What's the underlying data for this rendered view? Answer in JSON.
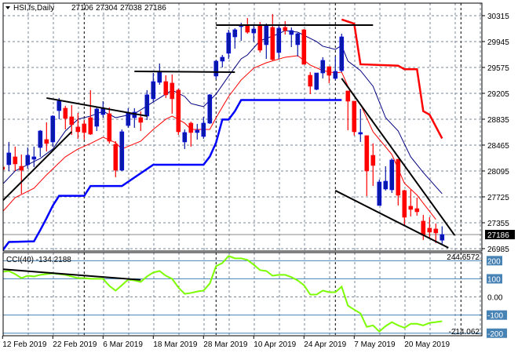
{
  "header": {
    "symbol": "HSI,fs,Daily",
    "open": "27106",
    "high": "27304",
    "low": "27038",
    "close": "27186"
  },
  "colors": {
    "bull": "#0a1aa8",
    "bear": "#ff0000",
    "ma_blue": "#000080",
    "ma_red": "#ff0000",
    "channel_low": "#0000ff",
    "channel_high": "#ff0000",
    "cci": "#7cfc00",
    "trendline": "#000000",
    "grid": "#7a8796",
    "cci_level": "#4682b4"
  },
  "chart_data": [
    {
      "type": "candlestick",
      "title": "",
      "ylim": [
        26951,
        30494
      ],
      "grid": true,
      "y_ticks": [
        "30315",
        "29945",
        "29575",
        "29205",
        "28835",
        "28465",
        "28095",
        "27725",
        "27355",
        "26985"
      ],
      "last_price_label": "27186",
      "x_labels": [
        "12 Feb 2019",
        "22 Feb 2019",
        "6 Mar 2019",
        "18 Mar 2019",
        "28 Mar 2019",
        "10 Apr 2019",
        "24 Apr 2019",
        "7 May 2019",
        "20 May 2019"
      ],
      "candles": [
        [
          "2019-02-12",
          28151,
          28218,
          27848,
          28117
        ],
        [
          "2019-02-13",
          28185,
          28510,
          28095,
          28353
        ],
        [
          "2019-02-14",
          28297,
          28443,
          28095,
          28196
        ],
        [
          "2019-02-15",
          28162,
          28331,
          27770,
          28106
        ],
        [
          "2019-02-18",
          28185,
          28431,
          28129,
          28319
        ],
        [
          "2019-02-19",
          28263,
          28443,
          28151,
          28297
        ],
        [
          "2019-02-20",
          28431,
          28680,
          28297,
          28667
        ],
        [
          "2019-02-21",
          28544,
          28790,
          28375,
          28488
        ],
        [
          "2019-02-22",
          28510,
          28891,
          28443,
          28880
        ],
        [
          "2019-02-25",
          28958,
          29138,
          28835,
          29093
        ],
        [
          "2019-02-26",
          28992,
          29026,
          28689,
          28846
        ],
        [
          "2019-02-27",
          28869,
          29037,
          28611,
          28757
        ],
        [
          "2019-02-28",
          28723,
          28925,
          28555,
          28656
        ],
        [
          "2019-03-01",
          28768,
          28824,
          28544,
          28645
        ],
        [
          "2019-03-04",
          28857,
          29250,
          28611,
          28622
        ],
        [
          "2019-03-05",
          28734,
          29003,
          28667,
          28981
        ],
        [
          "2019-03-06",
          28902,
          29093,
          28857,
          28992
        ],
        [
          "2019-03-07",
          28913,
          29003,
          28488,
          28521
        ],
        [
          "2019-03-08",
          28476,
          28521,
          28006,
          28106
        ],
        [
          "2019-03-11",
          28106,
          28689,
          28095,
          28656
        ],
        [
          "2019-03-12",
          28745,
          28992,
          28712,
          28925
        ],
        [
          "2019-03-13",
          28857,
          28992,
          28712,
          28936
        ],
        [
          "2019-03-14",
          28857,
          28947,
          28667,
          28790
        ],
        [
          "2019-03-15",
          28880,
          29250,
          28824,
          29183
        ],
        [
          "2019-03-18",
          29127,
          29496,
          29082,
          29373
        ],
        [
          "2019-03-19",
          29362,
          29631,
          29328,
          29519
        ],
        [
          "2019-03-20",
          29373,
          29463,
          29138,
          29183
        ],
        [
          "2019-03-21",
          29351,
          29474,
          28913,
          29127
        ],
        [
          "2019-03-22",
          29250,
          29272,
          28611,
          28656
        ],
        [
          "2019-03-25",
          28510,
          28689,
          28409,
          28645
        ],
        [
          "2019-03-26",
          28779,
          28801,
          28443,
          28645
        ],
        [
          "2019-03-27",
          28645,
          28768,
          28544,
          28678
        ],
        [
          "2019-03-28",
          28589,
          28869,
          28555,
          28779
        ],
        [
          "2019-03-29",
          28779,
          29194,
          28768,
          29183
        ],
        [
          "2019-04-01",
          29452,
          29676,
          29407,
          29665
        ],
        [
          "2019-04-02",
          29665,
          29754,
          29575,
          29721
        ],
        [
          "2019-04-03",
          29777,
          30113,
          29698,
          30068
        ],
        [
          "2019-04-04",
          30012,
          30135,
          29844,
          30113
        ],
        [
          "2019-04-08",
          30158,
          30214,
          29956,
          30180
        ],
        [
          "2019-04-09",
          30169,
          30281,
          30057,
          30079
        ],
        [
          "2019-04-10",
          30068,
          30180,
          29945,
          30124
        ],
        [
          "2019-04-11",
          30169,
          30225,
          29788,
          29822
        ],
        [
          "2019-04-12",
          29900,
          30203,
          29698,
          30169
        ],
        [
          "2019-04-15",
          30147,
          30337,
          29676,
          29687
        ],
        [
          "2019-04-16",
          29788,
          30180,
          29698,
          30135
        ],
        [
          "2019-04-17",
          30147,
          30236,
          30046,
          30102
        ],
        [
          "2019-04-18",
          30046,
          30147,
          29866,
          30102
        ],
        [
          "2019-04-23",
          29900,
          30068,
          29732,
          30057
        ],
        [
          "2019-04-24",
          30113,
          30124,
          29620,
          29620
        ],
        [
          "2019-04-25",
          29463,
          29508,
          29194,
          29306
        ],
        [
          "2019-04-26",
          29261,
          29496,
          29250,
          29496
        ],
        [
          "2019-04-29",
          29496,
          29721,
          29418,
          29676
        ],
        [
          "2019-04-30",
          29586,
          29586,
          29351,
          29463
        ],
        [
          "2019-05-02",
          29418,
          29732,
          29396,
          29519
        ],
        [
          "2019-05-03",
          29530,
          30057,
          29508,
          30012
        ],
        [
          "2019-05-06",
          29239,
          29239,
          28678,
          29093
        ],
        [
          "2019-05-07",
          29093,
          29093,
          28600,
          28656
        ],
        [
          "2019-05-08",
          28622,
          28981,
          28510,
          28645
        ],
        [
          "2019-05-09",
          28600,
          28600,
          27736,
          28095
        ],
        [
          "2019-05-10",
          28319,
          28488,
          27882,
          28174
        ],
        [
          "2019-05-14",
          27602,
          27972,
          27602,
          27938
        ],
        [
          "2019-05-15",
          27837,
          28162,
          27815,
          27949
        ],
        [
          "2019-05-16",
          27826,
          28275,
          27781,
          28252
        ],
        [
          "2019-05-17",
          28263,
          28263,
          27602,
          27748
        ],
        [
          "2019-05-20",
          27815,
          27826,
          27322,
          27434
        ],
        [
          "2019-05-21",
          27591,
          27826,
          27445,
          27546
        ],
        [
          "2019-05-22",
          27557,
          27714,
          27456,
          27512
        ],
        [
          "2019-05-23",
          27378,
          27467,
          27109,
          27176
        ],
        [
          "2019-05-24",
          27277,
          27434,
          27142,
          27221
        ],
        [
          "2019-05-27",
          27266,
          27344,
          27064,
          27210
        ],
        [
          "2019-05-28",
          27106,
          27304,
          27038,
          27186
        ]
      ],
      "ma_blue": [
        [
          "2019-02-12",
          27905
        ],
        [
          "2019-02-14",
          28096
        ],
        [
          "2019-02-18",
          28185
        ],
        [
          "2019-02-20",
          28275
        ],
        [
          "2019-02-22",
          28409
        ],
        [
          "2019-02-26",
          28667
        ],
        [
          "2019-02-28",
          28835
        ],
        [
          "2019-03-04",
          28880
        ],
        [
          "2019-03-06",
          28947
        ],
        [
          "2019-03-08",
          28857
        ],
        [
          "2019-03-13",
          28913
        ],
        [
          "2019-03-18",
          29082
        ],
        [
          "2019-03-20",
          29194
        ],
        [
          "2019-03-21",
          29250
        ],
        [
          "2019-03-25",
          29160
        ],
        [
          "2019-03-26",
          29059
        ],
        [
          "2019-03-28",
          29014
        ],
        [
          "2019-04-01",
          29194
        ],
        [
          "2019-04-03",
          29452
        ],
        [
          "2019-04-08",
          29698
        ],
        [
          "2019-04-09",
          29754
        ],
        [
          "2019-04-11",
          29956
        ],
        [
          "2019-04-16",
          30057
        ],
        [
          "2019-04-17",
          30102
        ],
        [
          "2019-04-23",
          30079
        ],
        [
          "2019-04-26",
          29945
        ],
        [
          "2019-04-29",
          29878
        ],
        [
          "2019-05-02",
          29833
        ],
        [
          "2019-05-03",
          29889
        ],
        [
          "2019-05-06",
          29665
        ],
        [
          "2019-05-08",
          29530
        ],
        [
          "2019-05-10",
          29306
        ],
        [
          "2019-05-15",
          28857
        ],
        [
          "2019-05-17",
          28667
        ],
        [
          "2019-05-21",
          28297
        ],
        [
          "2019-05-23",
          28073
        ],
        [
          "2019-05-28",
          27770
        ]
      ],
      "ma_red": [
        [
          "2019-02-12",
          27512
        ],
        [
          "2019-02-14",
          27714
        ],
        [
          "2019-02-19",
          27848
        ],
        [
          "2019-02-21",
          28039
        ],
        [
          "2019-02-26",
          28297
        ],
        [
          "2019-02-28",
          28409
        ],
        [
          "2019-03-04",
          28488
        ],
        [
          "2019-03-06",
          28577
        ],
        [
          "2019-03-08",
          28499
        ],
        [
          "2019-03-11",
          28409
        ],
        [
          "2019-03-14",
          28521
        ],
        [
          "2019-03-18",
          28689
        ],
        [
          "2019-03-20",
          28835
        ],
        [
          "2019-03-21",
          28880
        ],
        [
          "2019-03-25",
          28779
        ],
        [
          "2019-03-26",
          28689
        ],
        [
          "2019-03-29",
          28689
        ],
        [
          "2019-04-01",
          28857
        ],
        [
          "2019-04-03",
          29160
        ],
        [
          "2019-04-08",
          29396
        ],
        [
          "2019-04-10",
          29564
        ],
        [
          "2019-04-12",
          29642
        ],
        [
          "2019-04-17",
          29721
        ],
        [
          "2019-04-23",
          29743
        ],
        [
          "2019-04-25",
          29609
        ],
        [
          "2019-04-29",
          29530
        ],
        [
          "2019-05-02",
          29496
        ],
        [
          "2019-05-03",
          29508
        ],
        [
          "2019-05-06",
          29306
        ],
        [
          "2019-05-08",
          29048
        ],
        [
          "2019-05-10",
          28656
        ],
        [
          "2019-05-16",
          28331
        ],
        [
          "2019-05-20",
          27919
        ],
        [
          "2019-05-22",
          27751
        ],
        [
          "2019-05-27",
          27403
        ]
      ],
      "channel_low": [
        [
          "2019-02-12",
          26960
        ],
        [
          "2019-02-13",
          27080
        ],
        [
          "2019-02-19",
          27090
        ],
        [
          "2019-02-20",
          27250
        ],
        [
          "2019-02-21",
          27420
        ],
        [
          "2019-02-22",
          27600
        ],
        [
          "2019-02-25",
          27740
        ],
        [
          "2019-03-01",
          27740
        ],
        [
          "2019-03-04",
          27880
        ],
        [
          "2019-03-11",
          27880
        ],
        [
          "2019-03-18",
          28185
        ],
        [
          "2019-03-28",
          28185
        ],
        [
          "2019-03-29",
          28300
        ],
        [
          "2019-04-01",
          28500
        ],
        [
          "2019-04-02",
          28830
        ],
        [
          "2019-04-03",
          28830
        ],
        [
          "2019-04-04",
          28950
        ],
        [
          "2019-04-08",
          29110
        ],
        [
          "2019-05-03",
          29110
        ]
      ],
      "channel_high": [
        [
          "2019-05-03",
          30260
        ],
        [
          "2019-05-07",
          30200
        ],
        [
          "2019-05-08",
          29620
        ],
        [
          "2019-05-17",
          29600
        ],
        [
          "2019-05-20",
          29550
        ],
        [
          "2019-05-22",
          29550
        ],
        [
          "2019-05-23",
          28950
        ],
        [
          "2019-05-24",
          28900
        ],
        [
          "2019-05-28",
          28560
        ]
      ],
      "trendlines": [
        [
          [
            "2019-02-12",
            27669
          ],
          [
            "2019-02-27",
            28656
          ]
        ],
        [
          [
            "2019-02-21",
            29138
          ],
          [
            "2019-03-15",
            28880
          ]
        ],
        [
          [
            "2019-03-13",
            29519
          ],
          [
            "2019-04-04",
            29508
          ]
        ],
        [
          [
            "2019-04-01",
            30180
          ],
          [
            "2019-05-10",
            30180
          ]
        ],
        [
          [
            "2019-05-03",
            29418
          ],
          [
            "2019-05-30",
            27176
          ]
        ],
        [
          [
            "2019-05-02",
            27815
          ],
          [
            "2019-05-29",
            26997
          ]
        ]
      ]
    },
    {
      "type": "line",
      "title": "CCI(40) -134.2188",
      "ylim": [
        -214.062,
        244.6572
      ],
      "range_max_label": "244.6572",
      "range_min_label": "-214.062",
      "levels": [
        "200",
        "100",
        "0.00",
        "-100",
        "-200"
      ],
      "values": [
        139,
        143,
        126,
        104,
        117,
        113,
        122,
        126,
        130,
        126,
        122,
        113,
        104,
        104,
        100,
        100,
        100,
        61,
        35,
        65,
        96,
        91,
        83,
        113,
        135,
        143,
        117,
        100,
        52,
        17,
        22,
        30,
        35,
        74,
        170,
        187,
        226,
        213,
        213,
        204,
        178,
        148,
        143,
        117,
        122,
        122,
        109,
        91,
        65,
        13,
        13,
        35,
        26,
        26,
        57,
        -48,
        -70,
        -91,
        -165,
        -157,
        -191,
        -161,
        -139,
        -157,
        -170,
        -148,
        -148,
        -157,
        -143,
        -139,
        -134.2188
      ],
      "trendline": [
        [
          "2019-02-12",
          153
        ],
        [
          "2019-03-14",
          94
        ]
      ]
    }
  ]
}
